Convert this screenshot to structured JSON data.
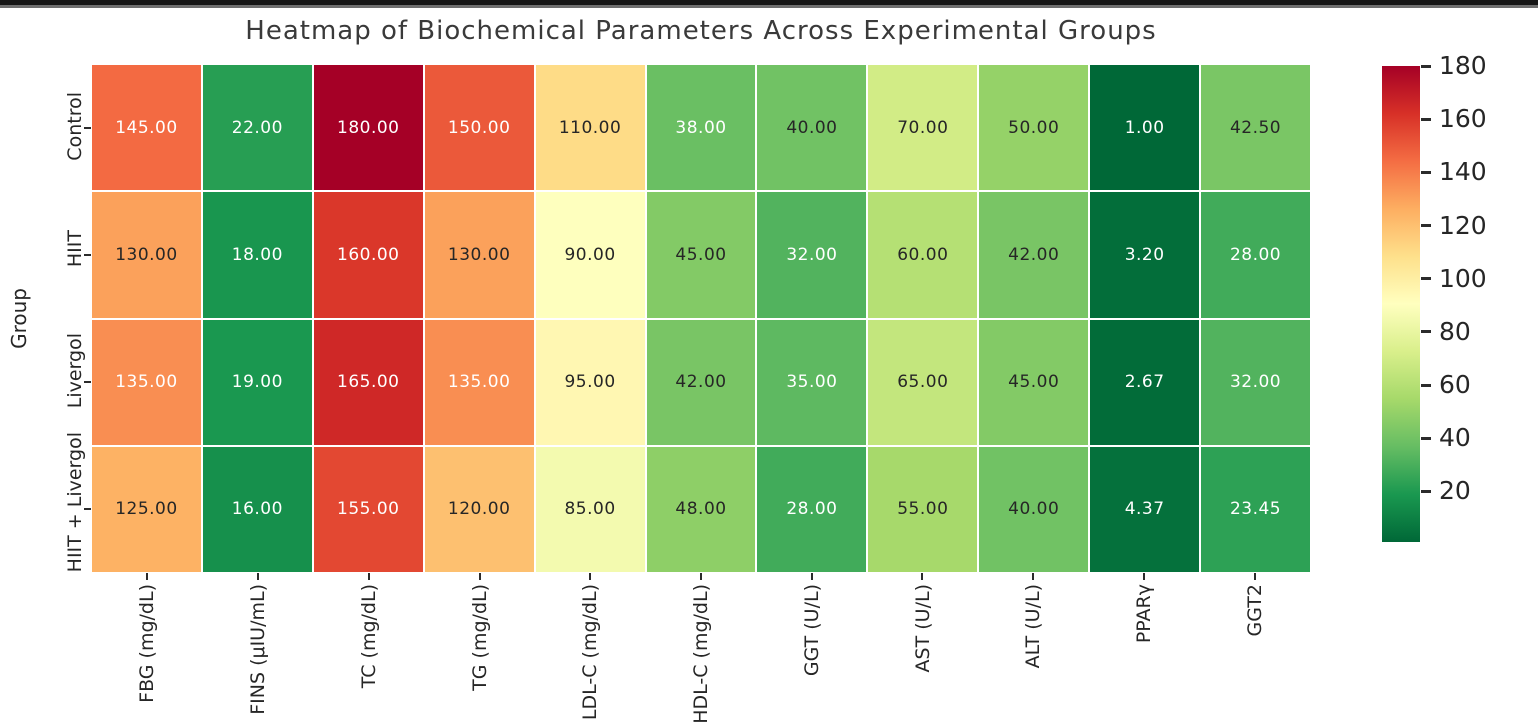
{
  "chart_data": {
    "type": "heatmap",
    "title": "Heatmap of Biochemical Parameters Across Experimental Groups",
    "ylabel": "Group",
    "rows": [
      "Control",
      "HIIT",
      "Livergol",
      "HIIT + Livergol"
    ],
    "columns": [
      "FBG (mg/dL)",
      "FINS (μIU/mL)",
      "TC (mg/dL)",
      "TG (mg/dL)",
      "LDL-C (mg/dL)",
      "HDL-C (mg/dL)",
      "GGT (U/L)",
      "AST (U/L)",
      "ALT (U/L)",
      "PPARγ",
      "GGT2"
    ],
    "values": [
      [
        145.0,
        22.0,
        180.0,
        150.0,
        110.0,
        38.0,
        40.0,
        70.0,
        50.0,
        1.0,
        42.5
      ],
      [
        130.0,
        18.0,
        160.0,
        130.0,
        90.0,
        45.0,
        32.0,
        60.0,
        42.0,
        3.2,
        28.0
      ],
      [
        135.0,
        19.0,
        165.0,
        135.0,
        95.0,
        42.0,
        35.0,
        65.0,
        45.0,
        2.67,
        32.0
      ],
      [
        125.0,
        16.0,
        155.0,
        120.0,
        85.0,
        48.0,
        28.0,
        55.0,
        40.0,
        4.37,
        23.45
      ]
    ],
    "vmin": 1,
    "vmax": 180,
    "colormap": "RdYlGn_r",
    "colormap_anchors_low_to_high": [
      "#006837",
      "#1a9850",
      "#66bd63",
      "#a6d96a",
      "#d9ef8b",
      "#ffffbf",
      "#fee08b",
      "#fdae61",
      "#f46d43",
      "#d73027",
      "#a50026"
    ],
    "colorbar_ticks": [
      180,
      160,
      140,
      120,
      100,
      80,
      60,
      40,
      20
    ],
    "annotation_decimals": 2,
    "annotation_colors": {
      "dark": "#262626",
      "light": "#ffffff"
    },
    "title_color": "#3a3a3a",
    "tick_label_color": "#262626",
    "grid_line_color": "#ffffff",
    "legend_position": "right-colorbar",
    "grid": "off"
  }
}
